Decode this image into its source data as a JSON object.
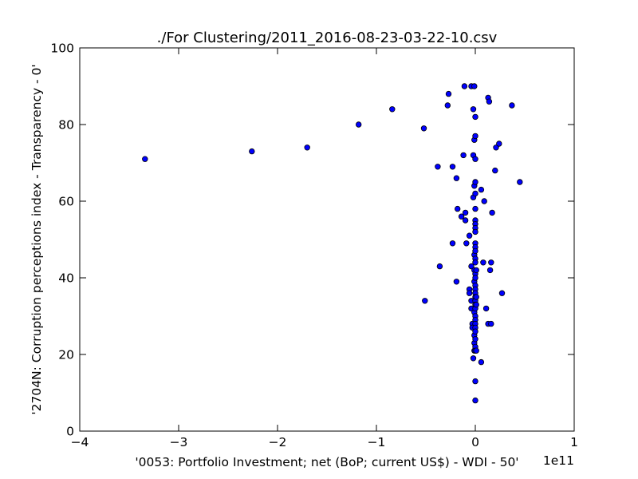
{
  "chart_data": {
    "type": "scatter",
    "title": "./For Clustering/2011_2016-08-23-03-22-10.csv",
    "xlabel": "'0053: Portfolio Investment; net  (BoP; current US$) - WDI - 50'",
    "ylabel": "'2704N: Corruption perceptions index - Transparency - 0'",
    "x_scale_label": "1e11",
    "x_scale": 100000000000.0,
    "xlim": [
      -4,
      1
    ],
    "ylim": [
      0,
      100
    ],
    "xticks": [
      -4,
      -3,
      -2,
      -1,
      0,
      1
    ],
    "xtick_labels": [
      "−4",
      "−3",
      "−2",
      "−1",
      "0",
      "1"
    ],
    "yticks": [
      0,
      20,
      40,
      60,
      80,
      100
    ],
    "ytick_labels": [
      "0",
      "20",
      "40",
      "60",
      "80",
      "100"
    ],
    "grid": false,
    "marker_color": "#0000ff",
    "marker_edge_color": "#000000",
    "points": [
      [
        -3.34,
        71
      ],
      [
        -2.26,
        73
      ],
      [
        -1.7,
        74
      ],
      [
        -1.18,
        80
      ],
      [
        -0.84,
        84
      ],
      [
        -0.52,
        79
      ],
      [
        -0.51,
        34
      ],
      [
        -0.38,
        69
      ],
      [
        -0.36,
        43
      ],
      [
        -0.28,
        85
      ],
      [
        -0.27,
        88
      ],
      [
        -0.23,
        49
      ],
      [
        -0.23,
        69
      ],
      [
        -0.19,
        39
      ],
      [
        -0.19,
        66
      ],
      [
        -0.18,
        58
      ],
      [
        -0.14,
        56
      ],
      [
        -0.12,
        72
      ],
      [
        -0.11,
        90
      ],
      [
        -0.1,
        57
      ],
      [
        -0.1,
        55
      ],
      [
        -0.09,
        49
      ],
      [
        -0.06,
        51
      ],
      [
        -0.06,
        37
      ],
      [
        -0.06,
        36
      ],
      [
        -0.04,
        90
      ],
      [
        -0.04,
        43
      ],
      [
        -0.04,
        34
      ],
      [
        -0.04,
        32
      ],
      [
        -0.03,
        28
      ],
      [
        -0.03,
        27
      ],
      [
        -0.02,
        61
      ],
      [
        -0.02,
        72
      ],
      [
        -0.02,
        84
      ],
      [
        -0.02,
        19
      ],
      [
        -0.01,
        76
      ],
      [
        -0.01,
        90
      ],
      [
        -0.01,
        64
      ],
      [
        -0.01,
        46
      ],
      [
        -0.01,
        42
      ],
      [
        -0.01,
        39
      ],
      [
        -0.01,
        31
      ],
      [
        -0.01,
        25
      ],
      [
        -0.01,
        23
      ],
      [
        -0.01,
        21
      ],
      [
        0.0,
        82
      ],
      [
        0.0,
        77
      ],
      [
        0.0,
        71
      ],
      [
        0.0,
        65
      ],
      [
        0.0,
        62
      ],
      [
        0.0,
        58
      ],
      [
        0.0,
        55
      ],
      [
        0.0,
        54
      ],
      [
        0.0,
        53
      ],
      [
        0.0,
        52
      ],
      [
        0.0,
        49
      ],
      [
        0.0,
        48
      ],
      [
        0.0,
        47
      ],
      [
        0.0,
        45
      ],
      [
        0.0,
        44
      ],
      [
        0.0,
        41
      ],
      [
        0.0,
        40
      ],
      [
        0.0,
        38
      ],
      [
        0.0,
        37
      ],
      [
        0.0,
        36
      ],
      [
        0.0,
        35
      ],
      [
        0.0,
        34
      ],
      [
        0.0,
        33
      ],
      [
        0.0,
        32
      ],
      [
        0.0,
        30
      ],
      [
        0.0,
        29
      ],
      [
        0.0,
        28
      ],
      [
        0.0,
        27
      ],
      [
        0.0,
        26
      ],
      [
        0.0,
        24
      ],
      [
        0.0,
        22
      ],
      [
        0.0,
        21
      ],
      [
        0.0,
        13
      ],
      [
        0.0,
        8
      ],
      [
        0.01,
        42
      ],
      [
        0.01,
        35
      ],
      [
        0.01,
        33
      ],
      [
        0.01,
        21
      ],
      [
        0.06,
        63
      ],
      [
        0.06,
        18
      ],
      [
        0.08,
        44
      ],
      [
        0.09,
        60
      ],
      [
        0.11,
        32
      ],
      [
        0.13,
        87
      ],
      [
        0.13,
        28
      ],
      [
        0.14,
        86
      ],
      [
        0.15,
        42
      ],
      [
        0.16,
        28
      ],
      [
        0.16,
        44
      ],
      [
        0.17,
        57
      ],
      [
        0.2,
        68
      ],
      [
        0.21,
        74
      ],
      [
        0.24,
        75
      ],
      [
        0.27,
        36
      ],
      [
        0.37,
        85
      ],
      [
        0.45,
        65
      ]
    ]
  }
}
